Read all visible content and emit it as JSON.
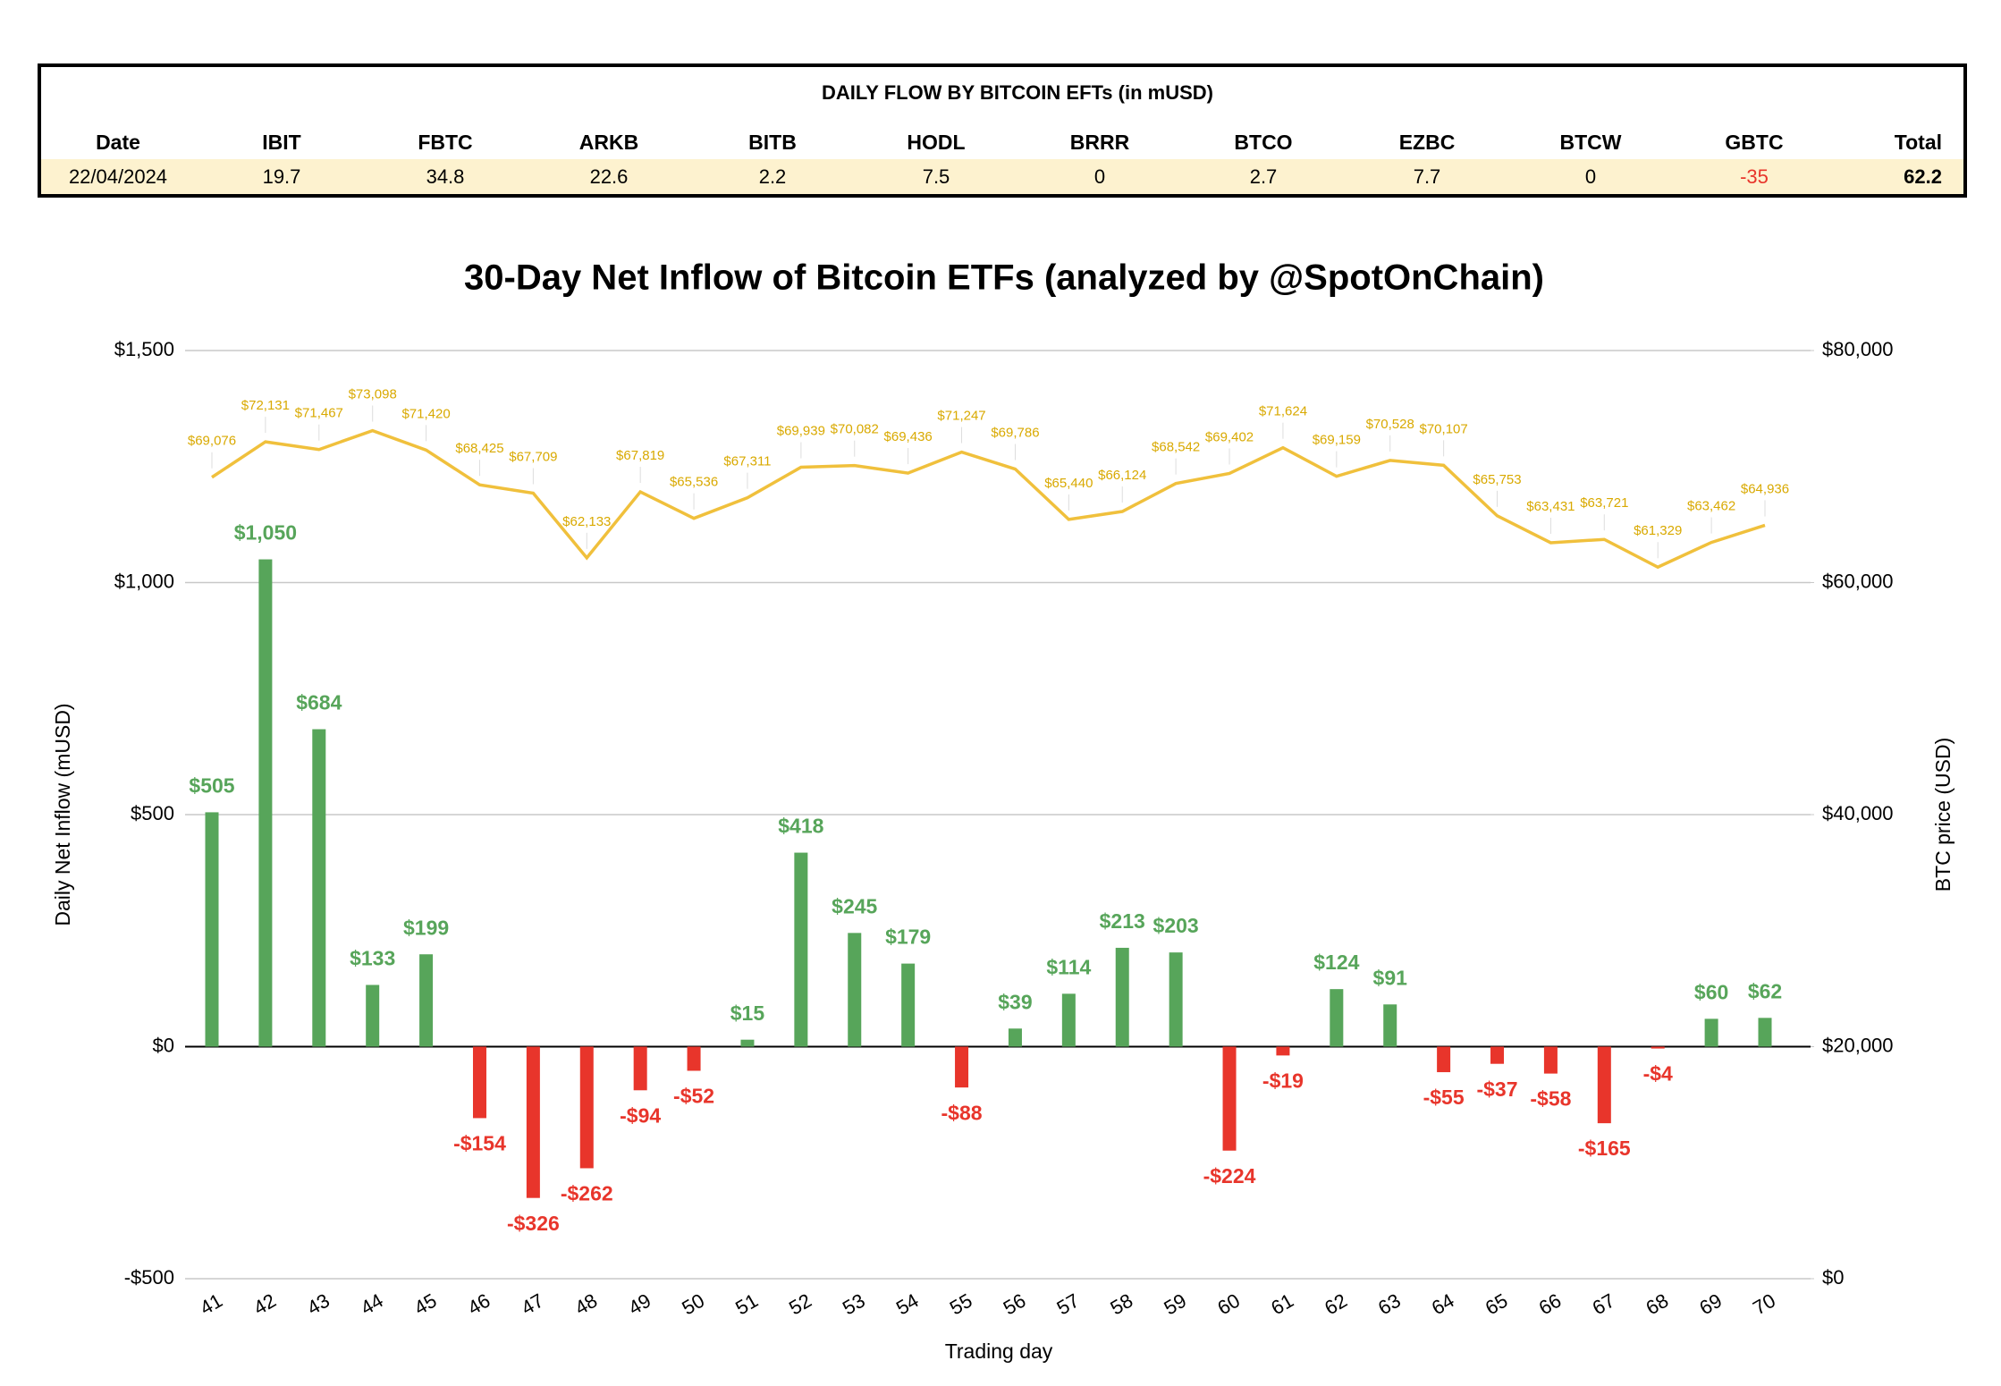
{
  "table": {
    "title": "DAILY FLOW BY BITCOIN EFTs (in mUSD)",
    "columns": [
      "Date",
      "IBIT",
      "FBTC",
      "ARKB",
      "BITB",
      "HODL",
      "BRRR",
      "BTCO",
      "EZBC",
      "BTCW",
      "GBTC",
      "Total"
    ],
    "rows": [
      [
        "22/04/2024",
        19.7,
        34.8,
        22.6,
        2.2,
        7.5,
        0,
        2.7,
        7.7,
        0,
        -35,
        62.2
      ]
    ]
  },
  "chart_data": {
    "type": "bar",
    "title": "30-Day Net Inflow of Bitcoin ETFs (analyzed by @SpotOnChain)",
    "x_label": "Trading day",
    "y_label": "Daily Net Inflow (mUSD)",
    "y2_label": "BTC price (USD)",
    "categories": [
      "41",
      "42",
      "43",
      "44",
      "45",
      "46",
      "47",
      "48",
      "49",
      "50",
      "51",
      "52",
      "53",
      "54",
      "55",
      "56",
      "57",
      "58",
      "59",
      "60",
      "61",
      "62",
      "63",
      "64",
      "65",
      "66",
      "67",
      "68",
      "69",
      "70"
    ],
    "series": [
      {
        "name": "Daily Net Inflow",
        "type": "bar",
        "color": "#57a55a",
        "negative_color": "#e8352b",
        "values": [
          505,
          1050,
          684,
          133,
          199,
          -154,
          -326,
          -262,
          -94,
          -52,
          15,
          418,
          245,
          179,
          -88,
          39,
          114,
          213,
          203,
          -224,
          -19,
          124,
          91,
          -55,
          -37,
          -58,
          -165,
          -4,
          60,
          62
        ],
        "value_labels": [
          "$505",
          "$1,050",
          "$684",
          "$133",
          "$199",
          "-$154",
          "-$326",
          "-$262",
          "-$94",
          "-$52",
          "$15",
          "$418",
          "$245",
          "$179",
          "-$88",
          "$39",
          "$114",
          "$213",
          "$203",
          "-$224",
          "-$19",
          "$124",
          "$91",
          "-$55",
          "-$37",
          "-$58",
          "-$165",
          "-$4",
          "$60",
          "$62"
        ]
      },
      {
        "name": "BTC price",
        "type": "line",
        "axis": "y2",
        "color": "#f0c03c",
        "values": [
          69076,
          72131,
          71467,
          73098,
          71420,
          68425,
          67709,
          62133,
          67819,
          65536,
          67311,
          69939,
          70082,
          69436,
          71247,
          69786,
          65440,
          66124,
          68542,
          69402,
          71624,
          69159,
          70528,
          70107,
          65753,
          63431,
          63721,
          61329,
          63462,
          64936
        ],
        "value_labels": [
          "$69,076",
          "$72,131",
          "$71,467",
          "$73,098",
          "$71,420",
          "$68,425",
          "$67,709",
          "$62,133",
          "$67,819",
          "$65,536",
          "$67,311",
          "$69,939",
          "$70,082",
          "$69,436",
          "$71,247",
          "$69,786",
          "$65,440",
          "$66,124",
          "$68,542",
          "$69,402",
          "$71,624",
          "$69,159",
          "$70,528",
          "$70,107",
          "$65,753",
          "$63,431",
          "$63,721",
          "$61,329",
          "$63,462",
          "$64,936"
        ]
      }
    ],
    "ylim": [
      -500,
      1500
    ],
    "yticks": [
      {
        "value": -500,
        "label": "-$500"
      },
      {
        "value": 0,
        "label": "$0"
      },
      {
        "value": 500,
        "label": "$500"
      },
      {
        "value": 1000,
        "label": "$1,000"
      },
      {
        "value": 1500,
        "label": "$1,500"
      }
    ],
    "y2lim": [
      0,
      80000
    ],
    "y2ticks": [
      {
        "value": 0,
        "label": "$0"
      },
      {
        "value": 20000,
        "label": "$20,000"
      },
      {
        "value": 40000,
        "label": "$40,000"
      },
      {
        "value": 60000,
        "label": "$60,000"
      },
      {
        "value": 80000,
        "label": "$80,000"
      }
    ],
    "grid": true
  }
}
